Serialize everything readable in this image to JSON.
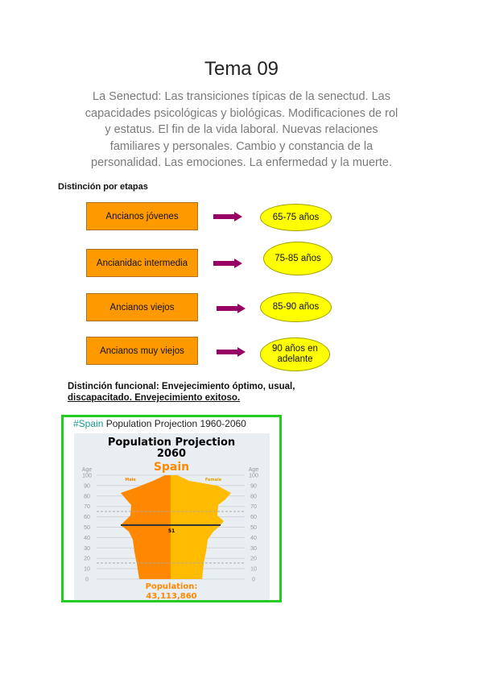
{
  "title": "Tema 09",
  "intro": "La Senectud: Las transiciones típicas de la senectud. Las capacidades psicológicas y biológicas. Modificaciones de rol y estatus. El fin de la vida laboral. Nuevas relaciones familiares y personales. Cambio y constancia de la personalidad. Las emociones. La enfermedad y la muerte.",
  "stages": {
    "heading": "Distinción por etapas",
    "items": [
      {
        "label": "Ancianos jóvenes",
        "age": "65-75 años"
      },
      {
        "label": "Ancianidac intermedia",
        "age": "75-85 años"
      },
      {
        "label": "Ancianos viejos",
        "age": "85-90 años"
      },
      {
        "label": "Ancianos muy viejos",
        "age": "90 años en adelante"
      }
    ],
    "colors": {
      "box": "#ff9900",
      "arrow": "#990066",
      "ellipse": "#ffff00"
    }
  },
  "functional": {
    "line1": "Distinción funcional:  Envejecimiento óptimo, usual,",
    "line2": "discapacitado. Envejecimiento exitoso."
  },
  "figure": {
    "caption_tag": "#Spain",
    "caption_rest": " Population Projection 1960-2060",
    "title1": "Population Projection",
    "title2": "2060",
    "country": "Spain",
    "axis_label": "Age",
    "ticks": [
      "100",
      "90",
      "80",
      "70",
      "60",
      "50",
      "40",
      "30",
      "20",
      "10",
      "0"
    ],
    "male": "Male",
    "female": "Female",
    "median": "51",
    "pop_label": "Population:",
    "pop_value": "43,113,860",
    "colors": {
      "male": "#ff8800",
      "female": "#ffbb00",
      "frame": "#22cc22"
    }
  }
}
